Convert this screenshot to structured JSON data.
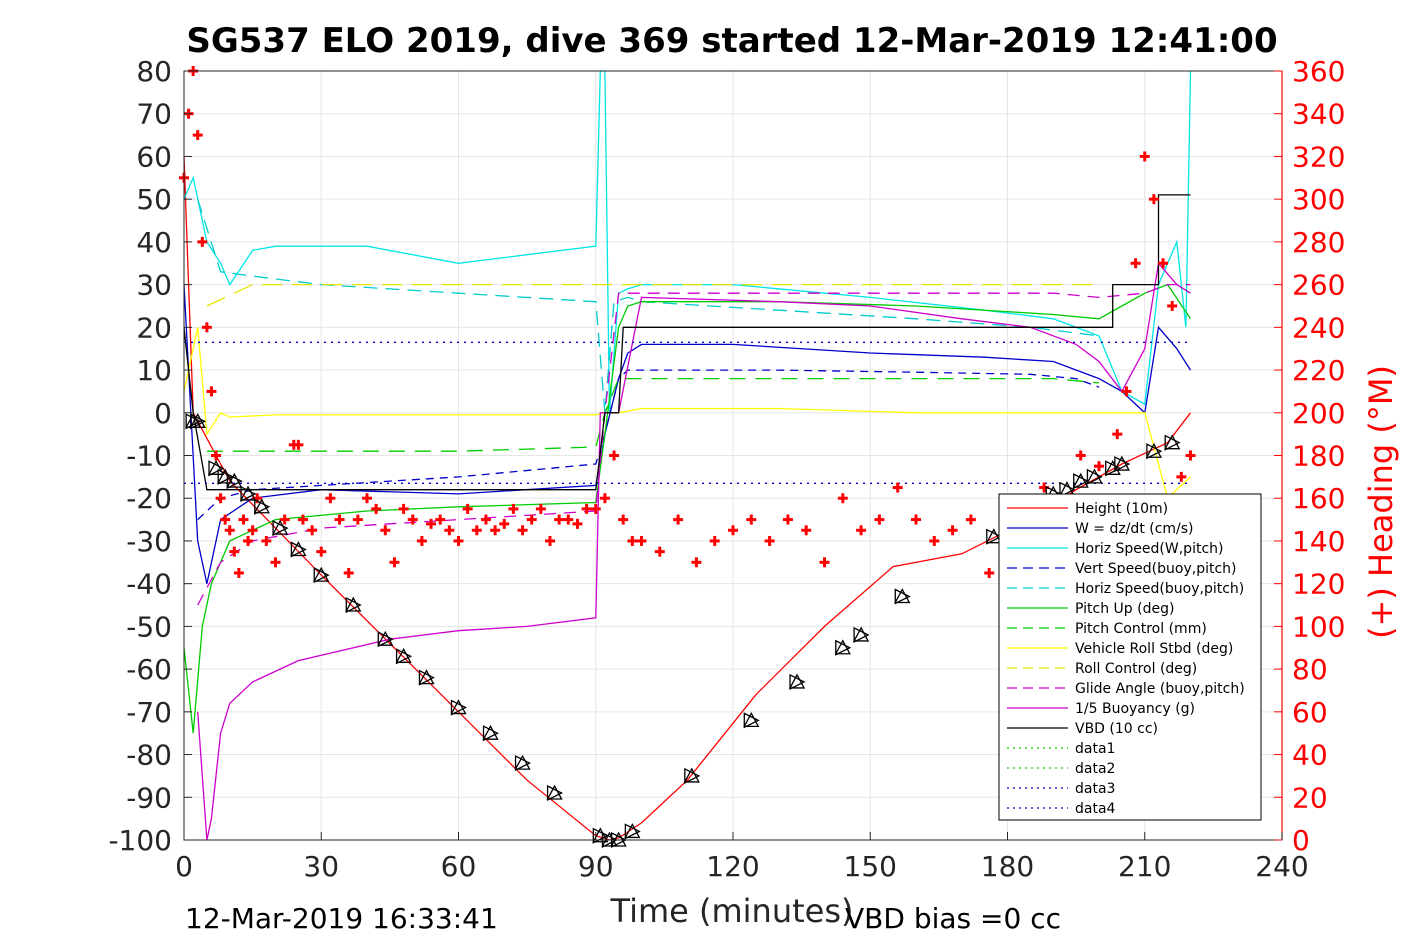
{
  "chart_data": {
    "type": "line",
    "title": "SG537 ELO 2019, dive 369 started 12-Mar-2019 12:41:00",
    "xlabel": "Time (minutes)",
    "ylabel": "",
    "y2label": "(+) Heading (°M)",
    "xlim": [
      0,
      240
    ],
    "ylim": [
      -100,
      80
    ],
    "y2lim": [
      0,
      360
    ],
    "x_ticks": [
      "0",
      "30",
      "60",
      "90",
      "120",
      "150",
      "180",
      "210",
      "240"
    ],
    "y_ticks": [
      "80",
      "70",
      "60",
      "50",
      "40",
      "30",
      "20",
      "10",
      "0",
      "-10",
      "-20",
      "-30",
      "-40",
      "-50",
      "-60",
      "-70",
      "-80",
      "-90",
      "-100"
    ],
    "y2_ticks": [
      "360",
      "340",
      "320",
      "300",
      "280",
      "260",
      "240",
      "220",
      "200",
      "180",
      "160",
      "140",
      "120",
      "100",
      "80",
      "60",
      "40",
      "20",
      "0"
    ],
    "footer_left": "12-Mar-2019 16:33:41",
    "footer_right": "VBD bias =0 cc",
    "grid": true,
    "legend_position": "lower-right",
    "legend": [
      {
        "name": "Height (10m)",
        "color": "#ff0000",
        "dash": "solid"
      },
      {
        "name": "W = dz/dt (cm/s)",
        "color": "#0000cc",
        "dash": "solid"
      },
      {
        "name": "Horiz Speed(W,pitch)",
        "color": "#00e5e5",
        "dash": "solid"
      },
      {
        "name": "Vert Speed(buoy,pitch)",
        "color": "#0000cc",
        "dash": "dashed"
      },
      {
        "name": "Horiz Speed(buoy,pitch)",
        "color": "#00cccc",
        "dash": "dashed"
      },
      {
        "name": "Pitch Up (deg)",
        "color": "#00cc00",
        "dash": "solid"
      },
      {
        "name": "Pitch Control (mm)",
        "color": "#00cc00",
        "dash": "dashed"
      },
      {
        "name": "Vehicle Roll Stbd (deg)",
        "color": "#ffff00",
        "dash": "solid"
      },
      {
        "name": "Roll Control (deg)",
        "color": "#e5e500",
        "dash": "dashed"
      },
      {
        "name": "Glide Angle (buoy,pitch)",
        "color": "#cc00cc",
        "dash": "dashed"
      },
      {
        "name": "1/5 Buoyancy (g)",
        "color": "#cc00cc",
        "dash": "solid"
      },
      {
        "name": "VBD (10 cc)",
        "color": "#000000",
        "dash": "solid"
      },
      {
        "name": "data1",
        "color": "#00cc00",
        "dash": "dotted"
      },
      {
        "name": "data2",
        "color": "#00cc00",
        "dash": "dotted"
      },
      {
        "name": "data3",
        "color": "#0000cc",
        "dash": "dotted"
      },
      {
        "name": "data4",
        "color": "#0000cc",
        "dash": "dotted"
      }
    ],
    "series": [
      {
        "name": "Height (10m)",
        "color": "#ff0000",
        "x": [
          0,
          2,
          10,
          20,
          30,
          45,
          60,
          75,
          90,
          93,
          95,
          100,
          110,
          125,
          140,
          155,
          170,
          185,
          195,
          205,
          215,
          220
        ],
        "y": [
          60,
          0,
          -16,
          -27,
          -38,
          -54,
          -70,
          -86,
          -99,
          -100,
          -99.5,
          -96,
          -86,
          -66,
          -50,
          -36,
          -33,
          -25,
          -18,
          -12,
          -7,
          0
        ]
      },
      {
        "name": "W = dz/dt (cm/s)",
        "color": "#0000cc",
        "x": [
          0,
          3,
          5,
          8,
          15,
          30,
          60,
          90,
          92,
          95,
          97,
          100,
          120,
          150,
          175,
          190,
          200,
          205,
          210,
          213,
          217,
          220
        ],
        "y": [
          30,
          -30,
          -40,
          -25,
          -20,
          -18,
          -19,
          -17,
          -5,
          8,
          14,
          16,
          16,
          14,
          13,
          12,
          8,
          5,
          0,
          20,
          15,
          10
        ]
      },
      {
        "name": "Horiz Speed(W,pitch)",
        "color": "#00e5e5",
        "x": [
          0,
          2,
          5,
          8,
          10,
          15,
          20,
          40,
          60,
          75,
          90,
          91,
          92,
          93,
          95,
          97,
          100,
          120,
          150,
          175,
          190,
          200,
          205,
          210,
          213,
          217,
          219,
          220
        ],
        "y": [
          50,
          55,
          40,
          35,
          30,
          38,
          39,
          39,
          35,
          37,
          39,
          80,
          80,
          0,
          28,
          29,
          30,
          30,
          27,
          24,
          22,
          18,
          5,
          2,
          30,
          40,
          20,
          80
        ]
      },
      {
        "name": "Vert Speed(buoy,pitch)",
        "color": "#0000cc",
        "dash": "8,6",
        "x": [
          3,
          8,
          15,
          30,
          60,
          90,
          92,
          95,
          97,
          100,
          130,
          160,
          185,
          195,
          200
        ],
        "y": [
          -25,
          -20,
          -18,
          -17,
          -15,
          -12,
          -5,
          8,
          10,
          10,
          10,
          9.5,
          9,
          8,
          6
        ]
      },
      {
        "name": "Horiz Speed(buoy,pitch)",
        "color": "#00cccc",
        "dash": "14,8",
        "x": [
          3,
          8,
          15,
          30,
          60,
          90,
          92,
          94,
          97,
          100,
          130,
          160,
          185,
          200
        ],
        "y": [
          50,
          33,
          32,
          30,
          28,
          26,
          0,
          26,
          27,
          26,
          24,
          22,
          20,
          18
        ]
      },
      {
        "name": "Pitch Up (deg)",
        "color": "#00cc00",
        "x": [
          0,
          2,
          4,
          6,
          10,
          20,
          40,
          60,
          90,
          92,
          95,
          97,
          100,
          130,
          160,
          190,
          200,
          205,
          210,
          215,
          220
        ],
        "y": [
          -55,
          -75,
          -50,
          -40,
          -30,
          -25,
          -23,
          -22,
          -21,
          -5,
          20,
          25,
          26,
          26,
          25,
          23,
          22,
          25,
          28,
          30,
          22
        ]
      },
      {
        "name": "Pitch Control (mm)",
        "color": "#00cc00",
        "dash": "16,10",
        "x": [
          5,
          15,
          30,
          60,
          90,
          92,
          95,
          100,
          130,
          160,
          190,
          200
        ],
        "y": [
          -9,
          -9,
          -9,
          -9,
          -8,
          0,
          8,
          8,
          8,
          8,
          8,
          7
        ]
      },
      {
        "name": "Vehicle Roll Stbd (deg)",
        "color": "#ffff00",
        "x": [
          0,
          3,
          5,
          8,
          10,
          20,
          40,
          60,
          90,
          92,
          95,
          100,
          130,
          160,
          190,
          200,
          210,
          215,
          220
        ],
        "y": [
          5,
          20,
          -5,
          0,
          -1,
          -0.5,
          -0.5,
          -0.5,
          -0.5,
          0,
          0,
          1,
          1,
          0,
          0,
          0,
          0,
          -20,
          -15
        ]
      },
      {
        "name": "Roll Control (deg)",
        "color": "#e5e500",
        "dash": "20,10",
        "x": [
          5,
          15,
          30,
          60,
          90,
          95,
          130,
          160,
          190,
          200
        ],
        "y": [
          25,
          30,
          30,
          30,
          30,
          30,
          30,
          30,
          30,
          30
        ]
      },
      {
        "name": "Glide Angle (buoy,pitch)",
        "color": "#cc00cc",
        "dash": "12,8",
        "x": [
          3,
          8,
          15,
          30,
          60,
          90,
          92,
          95,
          100,
          130,
          160,
          190,
          200,
          210,
          215,
          220
        ],
        "y": [
          -45,
          -35,
          -30,
          -27,
          -25,
          -23,
          0,
          28,
          28,
          28,
          28,
          28,
          27,
          28,
          30,
          30
        ]
      },
      {
        "name": "1/5 Buoyancy (g)",
        "color": "#cc00cc",
        "x": [
          3,
          4,
          5,
          6,
          8,
          10,
          15,
          25,
          45,
          60,
          75,
          90,
          91,
          92,
          95,
          100,
          130,
          150,
          170,
          185,
          195,
          200,
          205,
          210,
          213,
          217,
          220
        ],
        "y": [
          -70,
          -85,
          -100,
          -95,
          -75,
          -68,
          -63,
          -58,
          -53,
          -51,
          -50,
          -48,
          0,
          0,
          0,
          27,
          26,
          25,
          22,
          20,
          16,
          12,
          5,
          15,
          35,
          30,
          28
        ]
      },
      {
        "name": "VBD (10 cc)",
        "color": "#000000",
        "x": [
          0,
          2,
          5,
          90,
          92,
          95,
          96,
          100,
          180,
          200,
          203,
          203,
          210,
          213,
          213,
          220
        ],
        "y": [
          20,
          0,
          -18,
          -18,
          0,
          0,
          20,
          20,
          20,
          20,
          20,
          30,
          30,
          30,
          51,
          51
        ]
      },
      {
        "name": "data3",
        "color": "#0000cc",
        "dash": "2,5",
        "x": [
          0,
          220
        ],
        "y": [
          16.5,
          16.5
        ]
      },
      {
        "name": "data4",
        "color": "#0000cc",
        "dash": "2,5",
        "x": [
          0,
          220
        ],
        "y": [
          -16.5,
          -16.5
        ]
      }
    ],
    "heading_series": {
      "name": "(+) Heading (°M)",
      "axis": "right",
      "color": "#ff0000",
      "marker": "+",
      "x": [
        0,
        1,
        2,
        3,
        4,
        5,
        6,
        7,
        8,
        9,
        10,
        11,
        12,
        13,
        14,
        15,
        16,
        18,
        20,
        22,
        24,
        25,
        26,
        28,
        30,
        32,
        34,
        36,
        38,
        40,
        42,
        44,
        46,
        48,
        50,
        52,
        54,
        56,
        58,
        60,
        62,
        64,
        66,
        68,
        70,
        72,
        74,
        76,
        78,
        80,
        82,
        84,
        86,
        88,
        90,
        92,
        94,
        96,
        98,
        100,
        104,
        108,
        112,
        116,
        120,
        124,
        128,
        132,
        136,
        140,
        144,
        148,
        152,
        156,
        160,
        164,
        168,
        172,
        176,
        180,
        184,
        188,
        192,
        196,
        200,
        204,
        206,
        208,
        210,
        212,
        214,
        216,
        218,
        220
      ],
      "y": [
        310,
        340,
        360,
        330,
        280,
        240,
        210,
        180,
        160,
        150,
        145,
        135,
        125,
        150,
        140,
        145,
        160,
        140,
        130,
        150,
        185,
        185,
        150,
        145,
        135,
        160,
        150,
        125,
        150,
        160,
        155,
        145,
        130,
        155,
        150,
        140,
        148,
        150,
        145,
        140,
        155,
        145,
        150,
        145,
        148,
        155,
        145,
        150,
        155,
        140,
        150,
        150,
        148,
        155,
        155,
        160,
        180,
        150,
        140,
        140,
        135,
        150,
        130,
        140,
        145,
        150,
        140,
        150,
        145,
        130,
        160,
        145,
        150,
        165,
        150,
        140,
        145,
        150,
        125,
        140,
        150,
        165,
        155,
        180,
        175,
        190,
        210,
        270,
        320,
        300,
        270,
        250,
        170,
        180
      ]
    },
    "marker_series": {
      "name": "Height markers",
      "color": "#000000",
      "marker": "triangle",
      "x": [
        2,
        3,
        7,
        9,
        11,
        14,
        17,
        21,
        25,
        30,
        37,
        44,
        48,
        53,
        60,
        67,
        74,
        81,
        91,
        93,
        95,
        98,
        111,
        124,
        134,
        144,
        148,
        157,
        177,
        190,
        193,
        196,
        199,
        203,
        205,
        212,
        216
      ],
      "y": [
        -2,
        -2,
        -13,
        -15,
        -16,
        -19,
        -22,
        -27,
        -32,
        -38,
        -45,
        -53,
        -57,
        -62,
        -69,
        -75,
        -82,
        -89,
        -99,
        -100,
        -100,
        -98,
        -85,
        -72,
        -63,
        -55,
        -52,
        -43,
        -29,
        -19,
        -18,
        -16,
        -15,
        -13,
        -12,
        -9,
        -7
      ]
    }
  }
}
